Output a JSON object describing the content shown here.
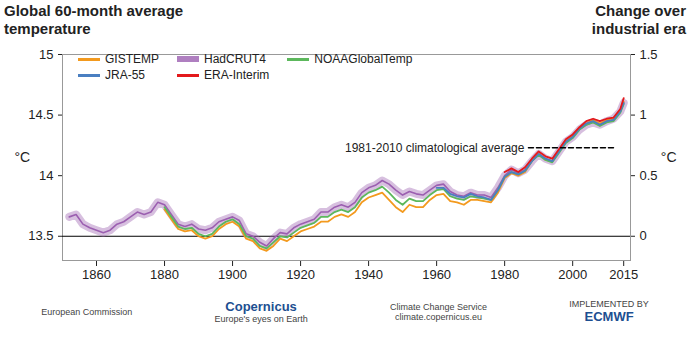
{
  "chart_data": {
    "type": "line",
    "title": "Global 60-month average temperature",
    "y2_title": "Change over industrial era",
    "y_label": "°C",
    "y2_label": "°C",
    "legend": "top-left",
    "x": [
      1852,
      1854,
      1856,
      1858,
      1860,
      1862,
      1864,
      1866,
      1868,
      1870,
      1872,
      1874,
      1876,
      1878,
      1880,
      1882,
      1884,
      1886,
      1888,
      1890,
      1892,
      1894,
      1896,
      1898,
      1900,
      1902,
      1904,
      1906,
      1908,
      1910,
      1912,
      1914,
      1916,
      1918,
      1920,
      1922,
      1924,
      1926,
      1928,
      1930,
      1932,
      1934,
      1936,
      1938,
      1940,
      1942,
      1944,
      1946,
      1948,
      1950,
      1952,
      1954,
      1956,
      1958,
      1960,
      1962,
      1964,
      1966,
      1968,
      1970,
      1972,
      1974,
      1976,
      1978,
      1980,
      1982,
      1984,
      1986,
      1988,
      1990,
      1992,
      1994,
      1996,
      1998,
      2000,
      2002,
      2004,
      2006,
      2008,
      2010,
      2012,
      2014,
      2015
    ],
    "xlim": [
      1850,
      2017
    ],
    "xticks": [
      1860,
      1880,
      1900,
      1920,
      1940,
      1960,
      1980,
      2000,
      2015
    ],
    "ylim": [
      13.3,
      15
    ],
    "yticks": [
      13.5,
      14,
      14.5,
      15
    ],
    "y2lim": [
      -0.2,
      1.5
    ],
    "y2ticks": [
      0,
      0.5,
      1,
      1.5
    ],
    "baseline": 13.5,
    "series": [
      {
        "name": "GISTEMP",
        "color": "#f39a1e",
        "values": [
          null,
          null,
          null,
          null,
          null,
          null,
          null,
          null,
          null,
          null,
          null,
          null,
          null,
          null,
          13.72,
          13.64,
          13.56,
          13.54,
          13.55,
          13.5,
          13.48,
          13.5,
          13.56,
          13.6,
          13.62,
          13.58,
          13.48,
          13.46,
          13.4,
          13.38,
          13.42,
          13.48,
          13.46,
          13.5,
          13.54,
          13.56,
          13.58,
          13.62,
          13.62,
          13.66,
          13.68,
          13.66,
          13.7,
          13.78,
          13.82,
          13.84,
          13.86,
          13.8,
          13.74,
          13.7,
          13.76,
          13.74,
          13.74,
          13.8,
          13.84,
          13.85,
          13.79,
          13.78,
          13.76,
          13.8,
          13.8,
          13.79,
          13.78,
          13.86,
          13.98,
          14.02,
          14.0,
          14.03,
          14.12,
          14.18,
          14.13,
          14.12,
          14.2,
          14.28,
          14.33,
          14.4,
          14.43,
          14.46,
          14.43,
          14.46,
          14.47,
          14.54,
          14.61
        ]
      },
      {
        "name": "HadCRUT4",
        "color": "#9b5fb0",
        "values": [
          13.66,
          13.68,
          13.6,
          13.57,
          13.55,
          13.53,
          13.55,
          13.6,
          13.62,
          13.66,
          13.7,
          13.68,
          13.7,
          13.78,
          13.76,
          13.68,
          13.6,
          13.58,
          13.6,
          13.56,
          13.55,
          13.57,
          13.62,
          13.64,
          13.66,
          13.63,
          13.52,
          13.5,
          13.45,
          13.42,
          13.48,
          13.53,
          13.52,
          13.57,
          13.6,
          13.62,
          13.64,
          13.7,
          13.7,
          13.74,
          13.76,
          13.74,
          13.78,
          13.86,
          13.9,
          13.92,
          13.96,
          13.93,
          13.88,
          13.84,
          13.87,
          13.85,
          13.84,
          13.88,
          13.92,
          13.93,
          13.87,
          13.84,
          13.83,
          13.86,
          13.84,
          13.84,
          13.82,
          13.9,
          14.0,
          14.05,
          14.02,
          14.05,
          14.12,
          14.18,
          14.14,
          14.12,
          14.2,
          14.28,
          14.32,
          14.38,
          14.42,
          14.44,
          14.42,
          14.45,
          14.47,
          14.53,
          14.6
        ]
      },
      {
        "name": "NOAAGlobalTemp",
        "color": "#5cb85c",
        "values": [
          null,
          null,
          null,
          null,
          null,
          null,
          null,
          null,
          null,
          null,
          null,
          null,
          null,
          null,
          13.74,
          13.66,
          13.58,
          13.56,
          13.57,
          13.52,
          13.5,
          13.52,
          13.58,
          13.62,
          13.64,
          13.6,
          13.5,
          13.48,
          13.42,
          13.4,
          13.45,
          13.5,
          13.49,
          13.53,
          13.57,
          13.59,
          13.61,
          13.66,
          13.66,
          13.7,
          13.72,
          13.7,
          13.74,
          13.82,
          13.86,
          13.88,
          13.91,
          13.86,
          13.8,
          13.76,
          13.81,
          13.79,
          13.79,
          13.84,
          13.88,
          13.89,
          13.83,
          13.81,
          13.8,
          13.83,
          13.82,
          13.81,
          13.8,
          13.88,
          13.99,
          14.03,
          14.01,
          14.04,
          14.12,
          14.17,
          14.13,
          14.11,
          14.19,
          14.27,
          14.31,
          14.38,
          14.42,
          14.44,
          14.41,
          14.44,
          14.45,
          14.52,
          14.59
        ]
      },
      {
        "name": "JRA-55",
        "color": "#4a7fc1",
        "values": [
          null,
          null,
          null,
          null,
          null,
          null,
          null,
          null,
          null,
          null,
          null,
          null,
          null,
          null,
          null,
          null,
          null,
          null,
          null,
          null,
          null,
          null,
          null,
          null,
          null,
          null,
          null,
          null,
          null,
          null,
          null,
          null,
          null,
          null,
          null,
          null,
          null,
          null,
          null,
          null,
          null,
          null,
          null,
          null,
          null,
          null,
          null,
          null,
          null,
          null,
          null,
          null,
          null,
          null,
          13.9,
          13.9,
          13.85,
          13.83,
          13.82,
          13.85,
          13.83,
          13.82,
          13.8,
          13.88,
          13.99,
          14.03,
          14.01,
          14.04,
          14.12,
          14.18,
          14.14,
          14.12,
          14.2,
          14.28,
          14.32,
          14.39,
          14.43,
          14.45,
          14.42,
          14.45,
          14.46,
          14.53,
          14.6
        ]
      },
      {
        "name": "ERA-Interim",
        "color": "#e3191c",
        "values": [
          null,
          null,
          null,
          null,
          null,
          null,
          null,
          null,
          null,
          null,
          null,
          null,
          null,
          null,
          null,
          null,
          null,
          null,
          null,
          null,
          null,
          null,
          null,
          null,
          null,
          null,
          null,
          null,
          null,
          null,
          null,
          null,
          null,
          null,
          null,
          null,
          null,
          null,
          null,
          null,
          null,
          null,
          null,
          null,
          null,
          null,
          null,
          null,
          null,
          null,
          null,
          null,
          null,
          null,
          null,
          null,
          null,
          null,
          null,
          null,
          null,
          null,
          null,
          null,
          14.03,
          14.06,
          14.03,
          14.07,
          14.14,
          14.2,
          14.16,
          14.14,
          14.22,
          14.3,
          14.34,
          14.4,
          14.45,
          14.47,
          14.45,
          14.47,
          14.48,
          14.55,
          14.64
        ]
      }
    ],
    "annotations": [
      {
        "text": "1981-2010 climatological average",
        "y": 14.23,
        "x": [
          1987,
          2012
        ],
        "line_style": "dashed"
      }
    ]
  },
  "footer": [
    "European Commission",
    "Copernicus",
    "Europe's eyes on Earth",
    "Climate Change Service",
    "climate.copernicus.eu",
    "IMPLEMENTED BY",
    "ECMWF"
  ]
}
